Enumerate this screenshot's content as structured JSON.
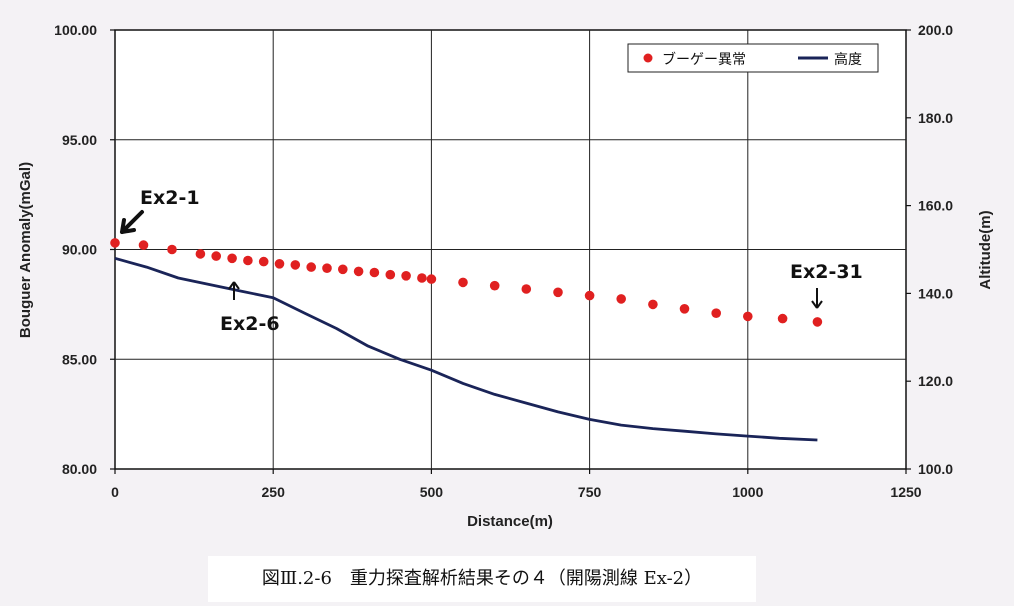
{
  "chart_data": {
    "type": "scatter+line",
    "xlabel": "Distance(m)",
    "ylabel_left": "Bouguer Anomaly(mGal)",
    "ylabel_right": "Altitude(m)",
    "xlim": [
      0,
      1250
    ],
    "ylim_left": [
      80,
      100
    ],
    "ylim_right": [
      100,
      200
    ],
    "x_ticks": [
      "0",
      "250",
      "500",
      "750",
      "1000",
      "1250"
    ],
    "y_left_ticks": [
      "80.00",
      "85.00",
      "90.00",
      "95.00",
      "100.00"
    ],
    "y_right_ticks": [
      "100.0",
      "120.0",
      "140.0",
      "160.0",
      "180.0",
      "200.0"
    ],
    "grid": true,
    "legend_position": "top-right",
    "series": [
      {
        "name": "ブーゲー異常",
        "kind": "scatter",
        "axis": "left",
        "color": "#e02020",
        "points": [
          [
            0,
            90.3
          ],
          [
            45,
            90.2
          ],
          [
            90,
            90.0
          ],
          [
            135,
            89.8
          ],
          [
            160,
            89.7
          ],
          [
            185,
            89.6
          ],
          [
            210,
            89.5
          ],
          [
            235,
            89.45
          ],
          [
            260,
            89.35
          ],
          [
            285,
            89.3
          ],
          [
            310,
            89.2
          ],
          [
            335,
            89.15
          ],
          [
            360,
            89.1
          ],
          [
            385,
            89.0
          ],
          [
            410,
            88.95
          ],
          [
            435,
            88.85
          ],
          [
            460,
            88.8
          ],
          [
            485,
            88.7
          ],
          [
            500,
            88.65
          ],
          [
            550,
            88.5
          ],
          [
            600,
            88.35
          ],
          [
            650,
            88.2
          ],
          [
            700,
            88.05
          ],
          [
            750,
            87.9
          ],
          [
            800,
            87.75
          ],
          [
            850,
            87.5
          ],
          [
            900,
            87.3
          ],
          [
            950,
            87.1
          ],
          [
            1000,
            86.95
          ],
          [
            1055,
            86.85
          ],
          [
            1110,
            86.7
          ]
        ]
      },
      {
        "name": "高度",
        "kind": "line",
        "axis": "right",
        "color": "#1a2458",
        "points": [
          [
            0,
            148.0
          ],
          [
            50,
            146.0
          ],
          [
            100,
            143.5
          ],
          [
            150,
            142.0
          ],
          [
            200,
            140.5
          ],
          [
            250,
            139.0
          ],
          [
            300,
            135.5
          ],
          [
            350,
            132.0
          ],
          [
            400,
            128.0
          ],
          [
            450,
            125.0
          ],
          [
            500,
            122.5
          ],
          [
            550,
            119.5
          ],
          [
            600,
            117.0
          ],
          [
            650,
            115.0
          ],
          [
            700,
            113.0
          ],
          [
            750,
            111.3
          ],
          [
            800,
            110.0
          ],
          [
            850,
            109.2
          ],
          [
            900,
            108.6
          ],
          [
            950,
            108.0
          ],
          [
            1000,
            107.5
          ],
          [
            1050,
            107.0
          ],
          [
            1110,
            106.6
          ]
        ]
      }
    ],
    "annotations": [
      {
        "label": "Ex2-1",
        "x": 0,
        "y": 90.3,
        "axis": "left"
      },
      {
        "label": "Ex2-6",
        "x": 185,
        "y": 89.6,
        "axis": "left"
      },
      {
        "label": "Ex2-31",
        "x": 1110,
        "y": 86.7,
        "axis": "left"
      }
    ]
  },
  "caption": "図Ⅲ.2-6　重力探査解析結果その４（開陽測線 Ex-2）"
}
